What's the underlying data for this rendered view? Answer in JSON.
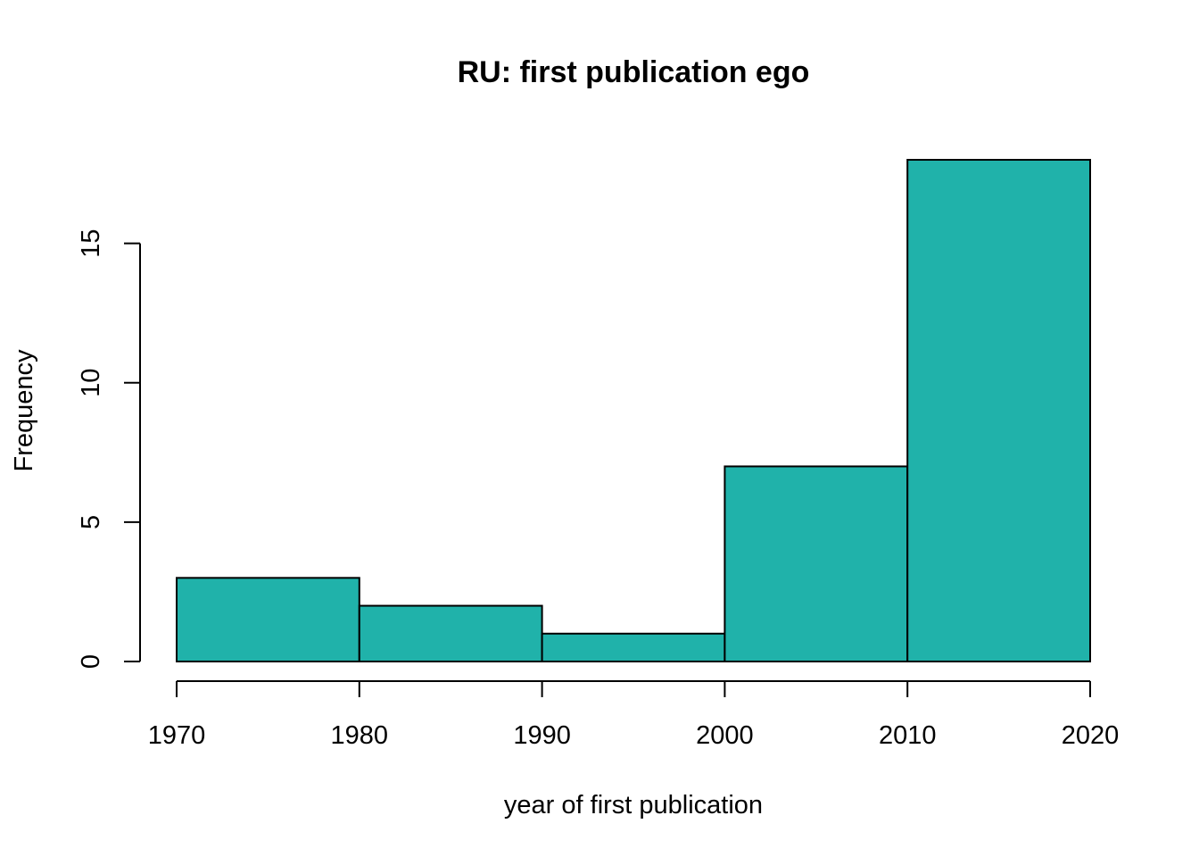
{
  "chart_data": {
    "type": "bar",
    "histogram": true,
    "title": "RU: first publication ego",
    "xlabel": "year of first publication",
    "ylabel": "Frequency",
    "bins": [
      {
        "from": 1970,
        "to": 1980,
        "count": 3
      },
      {
        "from": 1980,
        "to": 1990,
        "count": 2
      },
      {
        "from": 1990,
        "to": 2000,
        "count": 1
      },
      {
        "from": 2000,
        "to": 2010,
        "count": 7
      },
      {
        "from": 2010,
        "to": 2020,
        "count": 18
      }
    ],
    "xlim": [
      1970,
      2020
    ],
    "ylim": [
      0,
      18
    ],
    "xticks": [
      1970,
      1980,
      1990,
      2000,
      2010,
      2020
    ],
    "yticks": [
      0,
      5,
      10,
      15
    ],
    "grid": false,
    "legend": "none",
    "bar_color": "#20B2AA",
    "edge_color": "#000000"
  }
}
